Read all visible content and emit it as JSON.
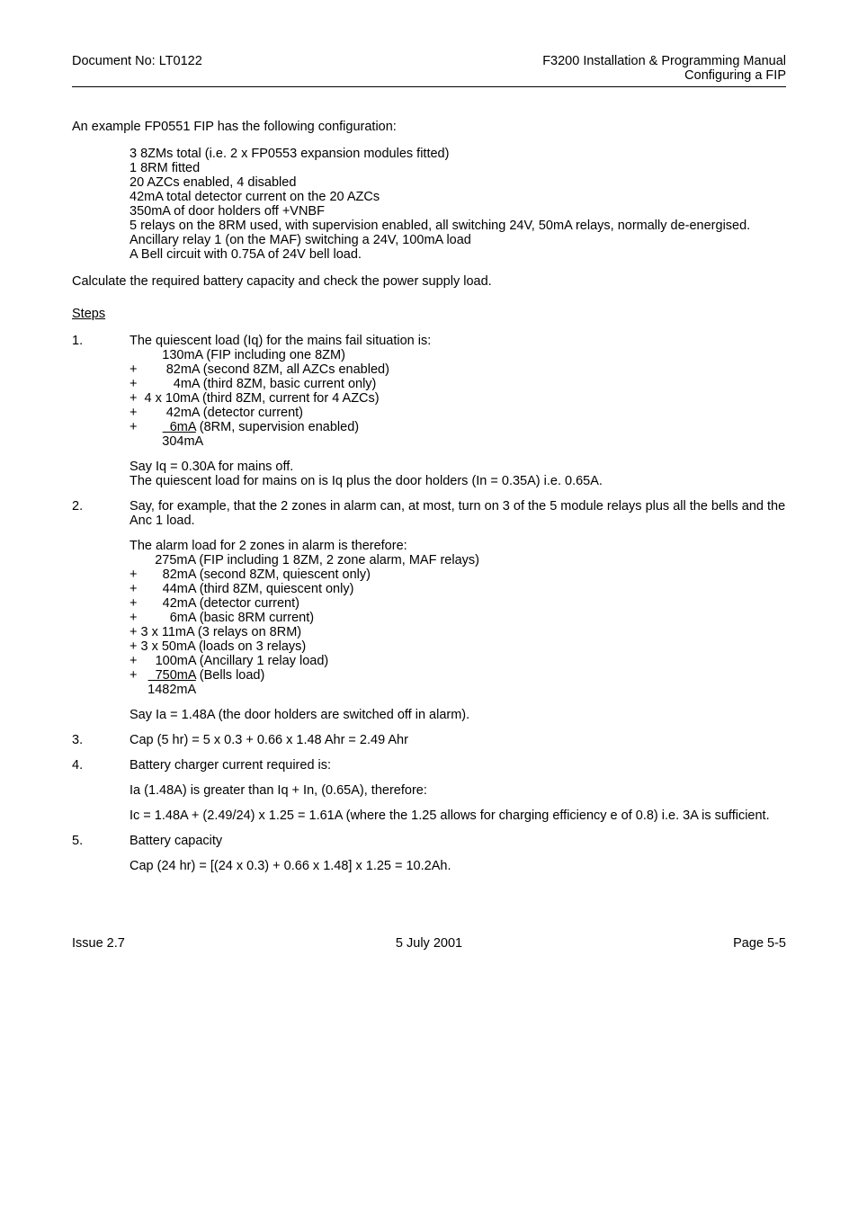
{
  "header": {
    "doc_no": "Document No: LT0122",
    "title_line1": "F3200 Installation & Programming Manual",
    "title_line2": "Configuring a FIP"
  },
  "intro": "An example FP0551 FIP has the following configuration:",
  "config_lines": [
    "3 8ZMs total (i.e. 2 x FP0553 expansion modules fitted)",
    "1 8RM fitted",
    "20 AZCs enabled, 4 disabled",
    "42mA total detector current on the 20 AZCs",
    "350mA of door holders off +VNBF",
    "5 relays on the 8RM used, with supervision enabled, all switching 24V, 50mA relays, normally de-energised.",
    "Ancillary relay 1 (on the MAF) switching a 24V, 100mA load",
    "A Bell circuit with 0.75A of 24V bell load."
  ],
  "calc_sentence": "Calculate the required battery capacity and check the power supply load.",
  "steps_label": "Steps",
  "step1": {
    "num": "1.",
    "lead": "The quiescent load (Iq) for the mains fail situation is:",
    "lines": [
      "         130mA (FIP including one 8ZM)",
      "+        82mA (second 8ZM, all AZCs enabled)",
      "+          4mA (third 8ZM, basic current only)",
      "+  4 x 10mA (third 8ZM, current for 4 AZCs)",
      "+        42mA (detector current)"
    ],
    "last_prefix": "+       ",
    "last_underlined": "  6mA",
    "last_suffix": " (8RM, supervision enabled)",
    "total": "         304mA",
    "tail1": "Say Iq = 0.30A for mains off.",
    "tail2": "The quiescent load for mains on is Iq plus the door holders (In = 0.35A) i.e. 0.65A."
  },
  "step2": {
    "num": "2.",
    "lead": "Say, for example, that the 2 zones in alarm can, at most, turn on 3 of the 5 module relays plus all the bells and the Anc 1 load.",
    "sub_lead": "The alarm load for 2 zones in alarm is therefore:",
    "lines": [
      "       275mA (FIP including 1 8ZM, 2 zone alarm, MAF relays)",
      "+       82mA (second 8ZM, quiescent only)",
      "+       44mA (third 8ZM, quiescent only)",
      "+       42mA (detector current)",
      "+         6mA (basic 8RM current)",
      "+ 3 x 11mA (3 relays on 8RM)",
      "+ 3 x 50mA (loads on 3 relays)",
      "+     100mA (Ancillary 1 relay load)"
    ],
    "last_prefix": "+   ",
    "last_underlined": "  750mA",
    "last_suffix": " (Bells load)",
    "total": "     1482mA",
    "tail": "Say Ia = 1.48A (the door holders are switched off in alarm)."
  },
  "step3": {
    "num": "3.",
    "text": "Cap (5 hr) = 5 x 0.3 + 0.66 x 1.48 Ahr = 2.49 Ahr"
  },
  "step4": {
    "num": "4.",
    "lead": "Battery charger current required is:",
    "p1": "Ia (1.48A) is greater than Iq + In, (0.65A), therefore:",
    "p2": "Ic = 1.48A + (2.49/24) x 1.25 = 1.61A (where the 1.25 allows for charging efficiency e of 0.8) i.e. 3A is sufficient."
  },
  "step5": {
    "num": "5.",
    "lead": "Battery capacity",
    "p1": "Cap (24 hr) = [(24 x 0.3) + 0.66 x 1.48] x 1.25 = 10.2Ah."
  },
  "footer": {
    "left": "Issue 2.7",
    "center": "5 July 2001",
    "right": "Page 5-5"
  }
}
